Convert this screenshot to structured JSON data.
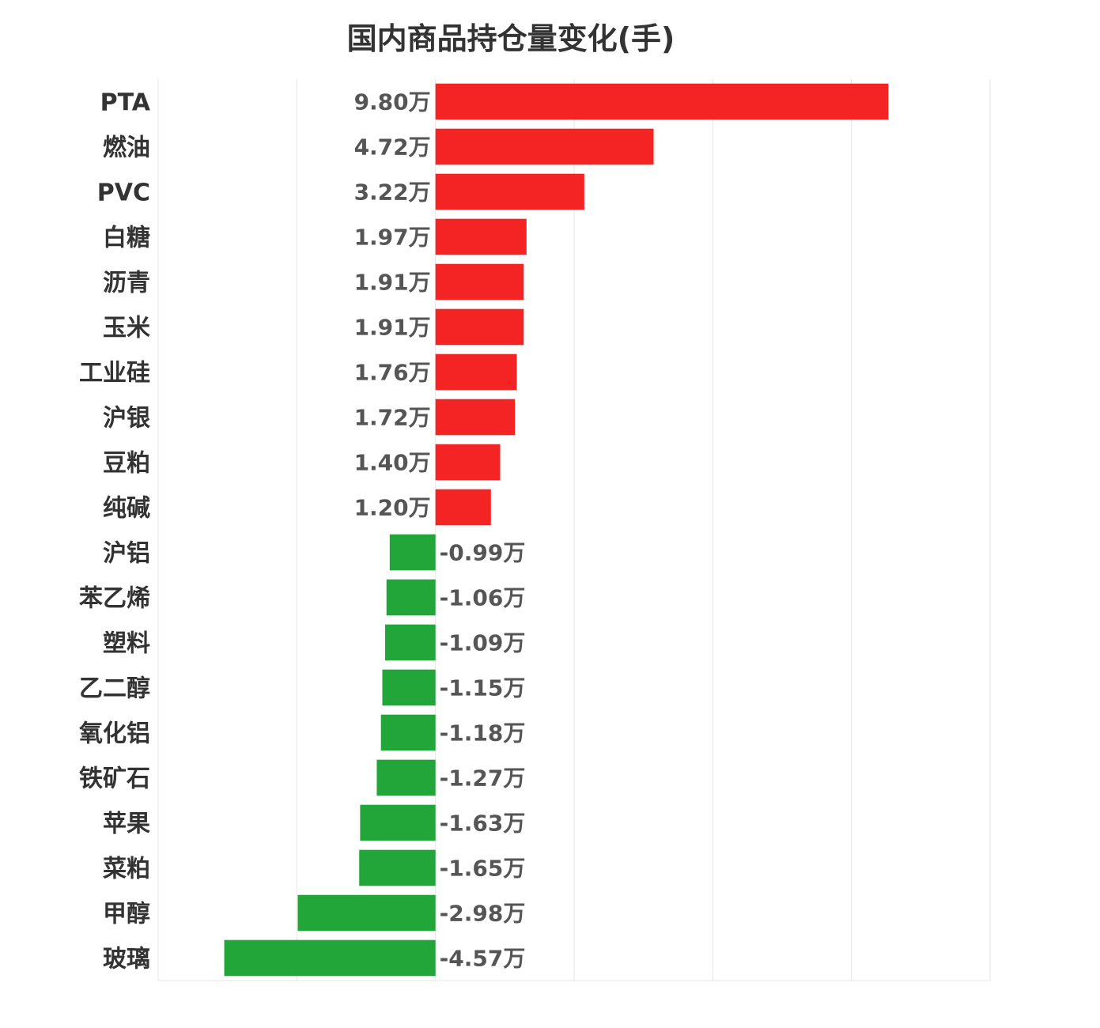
{
  "chart_data": {
    "type": "bar",
    "orientation": "horizontal",
    "title": "国内商品持仓量变化(手)",
    "unit_suffix": "万",
    "categories": [
      "PTA",
      "燃油",
      "PVC",
      "白糖",
      "沥青",
      "玉米",
      "工业硅",
      "沪银",
      "豆粕",
      "纯碱",
      "沪铝",
      "苯乙烯",
      "塑料",
      "乙二醇",
      "氧化铝",
      "铁矿石",
      "苹果",
      "菜粕",
      "甲醇",
      "玻璃"
    ],
    "values": [
      9.8,
      4.72,
      3.22,
      1.97,
      1.91,
      1.91,
      1.76,
      1.72,
      1.4,
      1.2,
      -0.99,
      -1.06,
      -1.09,
      -1.15,
      -1.18,
      -1.27,
      -1.63,
      -1.65,
      -2.98,
      -4.57
    ],
    "value_labels": [
      "9.80万",
      "4.72万",
      "3.22万",
      "1.97万",
      "1.91万",
      "1.91万",
      "1.76万",
      "1.72万",
      "1.40万",
      "1.20万",
      "-0.99万",
      "-1.06万",
      "-1.09万",
      "-1.15万",
      "-1.18万",
      "-1.27万",
      "-1.63万",
      "-1.65万",
      "-2.98万",
      "-4.57万"
    ],
    "xlim": [
      -6,
      12
    ],
    "grid": true,
    "colors": {
      "positive": "#f52424",
      "negative": "#22a63a"
    }
  }
}
